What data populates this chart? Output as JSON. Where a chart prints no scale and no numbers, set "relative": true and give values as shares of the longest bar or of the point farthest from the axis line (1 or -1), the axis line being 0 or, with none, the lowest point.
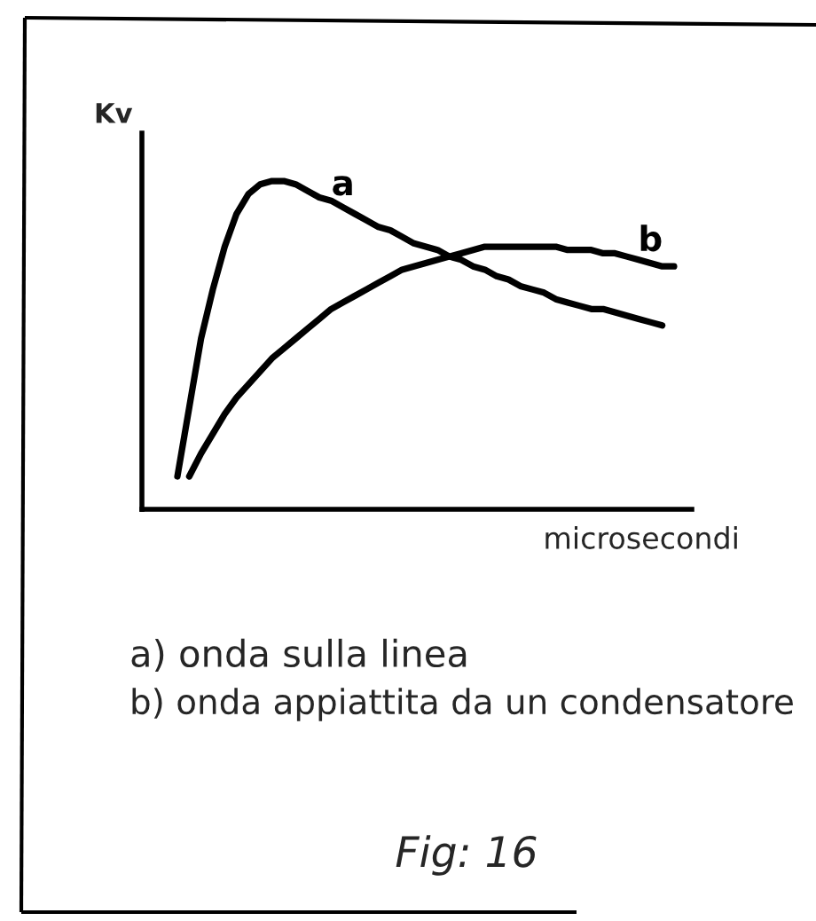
{
  "chart_data": {
    "type": "line",
    "relative": true,
    "xlabel": "microsecondi",
    "ylabel": "Kv",
    "categories": [
      null,
      null,
      null,
      null,
      null,
      null,
      null,
      null,
      null,
      null,
      null,
      null,
      null,
      null,
      null,
      null,
      null,
      null,
      null,
      null,
      null,
      null,
      null,
      null,
      null,
      null,
      null,
      null,
      null,
      null,
      null,
      null,
      null,
      null,
      null,
      null,
      null,
      null,
      null,
      null,
      null,
      null,
      null,
      null
    ],
    "series": [
      {
        "name": "a",
        "color": "#000000",
        "values": [
          0.1,
          0.31,
          0.52,
          0.67,
          0.8,
          0.9,
          0.96,
          0.99,
          1.0,
          1.0,
          0.99,
          0.97,
          0.95,
          0.94,
          0.92,
          0.9,
          0.88,
          0.86,
          0.85,
          0.83,
          0.81,
          0.8,
          0.79,
          0.77,
          0.76,
          0.74,
          0.73,
          0.71,
          0.7,
          0.68,
          0.67,
          0.66,
          0.64,
          0.63,
          0.62,
          0.61,
          0.61,
          0.6,
          0.59,
          0.58,
          0.57,
          0.56,
          null,
          null
        ]
      },
      {
        "name": "b",
        "color": "#000000",
        "values": [
          null,
          0.1,
          0.17,
          0.23,
          0.29,
          0.34,
          0.38,
          0.42,
          0.46,
          0.49,
          0.52,
          0.55,
          0.58,
          0.61,
          0.63,
          0.65,
          0.67,
          0.69,
          0.71,
          0.73,
          0.74,
          0.75,
          0.76,
          0.77,
          0.78,
          0.79,
          0.8,
          0.8,
          0.8,
          0.8,
          0.8,
          0.8,
          0.8,
          0.79,
          0.79,
          0.79,
          0.78,
          0.78,
          0.77,
          0.76,
          0.75,
          0.74,
          0.74,
          null
        ]
      }
    ],
    "annotations": [
      "a) onda sulla linea",
      "b) onda appiattita da un condensatore",
      "Fig: 16"
    ]
  }
}
